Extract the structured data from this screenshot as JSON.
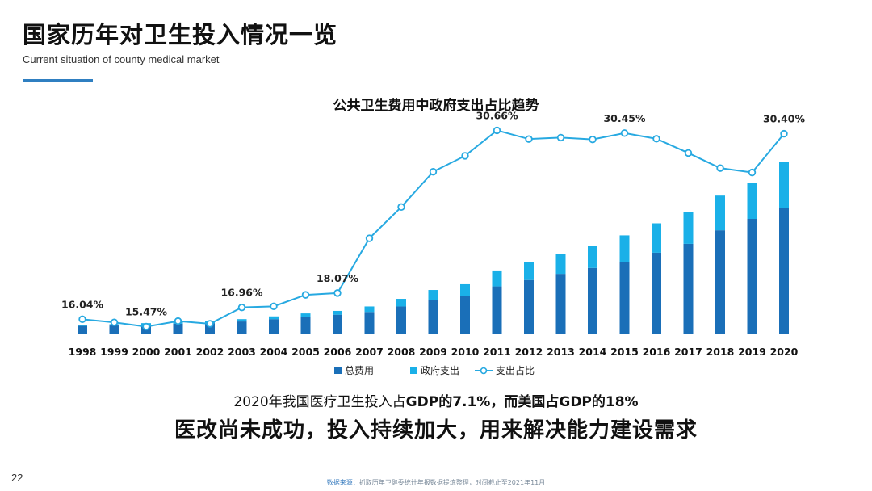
{
  "header": {
    "title": "国家历年对卫生投入情况一览",
    "subtitle": "Current situation of county medical market"
  },
  "colors": {
    "total": "#1a6fb8",
    "gov": "#1ab0e8",
    "line": "#27a9e1",
    "accent": "#2f7fc1"
  },
  "chart_data": {
    "type": "bar",
    "title": "公共卫生费用中政府支出占比趋势",
    "categories": [
      "1998",
      "1999",
      "2000",
      "2001",
      "2002",
      "2003",
      "2004",
      "2005",
      "2006",
      "2007",
      "2008",
      "2009",
      "2010",
      "2011",
      "2012",
      "2013",
      "2014",
      "2015",
      "2016",
      "2017",
      "2018",
      "2019",
      "2020"
    ],
    "series": [
      {
        "name": "总费用",
        "type": "stacked-bar",
        "values": [
          3.6,
          3.8,
          4.2,
          4.6,
          4.9,
          5.7,
          6.8,
          7.9,
          8.9,
          10.2,
          12.8,
          15.8,
          17.6,
          22.3,
          25.3,
          28.2,
          31.0,
          33.9,
          38.2,
          42.4,
          48.8,
          54.2,
          59.3
        ]
      },
      {
        "name": "政府支出",
        "type": "stacked-bar",
        "values": [
          0.6,
          0.6,
          0.7,
          0.8,
          0.9,
          1.1,
          1.3,
          1.6,
          1.8,
          2.6,
          3.6,
          4.8,
          5.7,
          7.5,
          8.4,
          9.5,
          10.6,
          12.5,
          13.9,
          15.2,
          16.4,
          16.9,
          21.9
        ]
      },
      {
        "name": "支出占比",
        "type": "line",
        "values": [
          16.04,
          15.8,
          15.47,
          15.9,
          15.69,
          16.96,
          17.04,
          17.93,
          18.07,
          22.31,
          24.73,
          27.46,
          28.69,
          30.66,
          29.99,
          30.1,
          29.96,
          30.45,
          30.01,
          28.91,
          27.74,
          27.4,
          30.4
        ]
      }
    ],
    "bar_ylim": [
      0,
      90
    ],
    "line_ylim": [
      12,
      32
    ],
    "line_labels": [
      {
        "index": 0,
        "text": "16.04%"
      },
      {
        "index": 2,
        "text": "15.47%"
      },
      {
        "index": 5,
        "text": "16.96%"
      },
      {
        "index": 8,
        "text": "18.07%"
      },
      {
        "index": 13,
        "text": "30.66%"
      },
      {
        "index": 17,
        "text": "30.45%"
      },
      {
        "index": 22,
        "text": "30.40%"
      }
    ],
    "legend": [
      "总费用",
      "政府支出",
      "支出占比"
    ],
    "legend_position": "bottom",
    "grid": false
  },
  "note": {
    "prefix": "2020年我国医疗卫生投入占",
    "gdp_cn": "GDP的7.1%",
    "middle": "，而美国",
    "gdp_us": "占GDP的18%"
  },
  "conclusion": "医改尚未成功，投入持续加大，用来解决能力建设需求",
  "page_number": "22",
  "source": {
    "label": "数据来源：",
    "text": "抓取历年卫健委统计年报数据提炼整理，时间截止至2021年11月"
  }
}
